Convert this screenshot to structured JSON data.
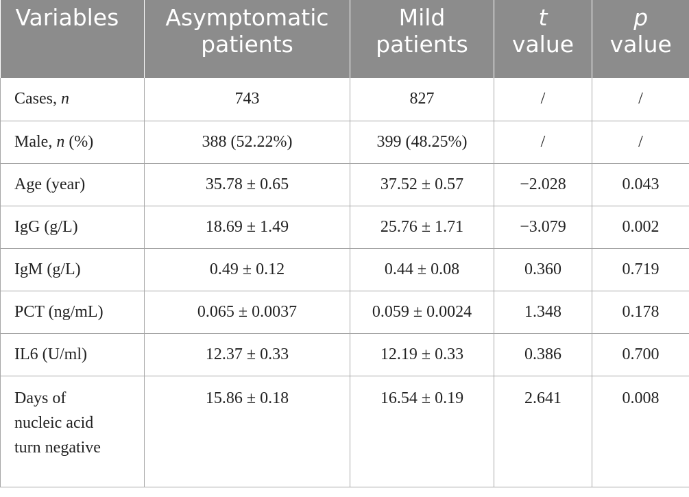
{
  "header": {
    "variables": "Variables",
    "asymptomatic_line1": "Asymptomatic",
    "asymptomatic_line2": "patients",
    "mild_line1": "Mild",
    "mild_line2": "patients",
    "t_symbol": "t",
    "t_word": "value",
    "p_symbol": "p",
    "p_word": "value"
  },
  "rows": [
    {
      "label_pre": "Cases, ",
      "label_italic": "n",
      "label_post": "",
      "asymptomatic": "743",
      "mild": "827",
      "t": "/",
      "p": "/"
    },
    {
      "label_pre": "Male, ",
      "label_italic": "n",
      "label_post": " (%)",
      "asymptomatic": "388 (52.22%)",
      "mild": "399 (48.25%)",
      "t": "/",
      "p": "/"
    },
    {
      "label_pre": "Age (year)",
      "label_italic": "",
      "label_post": "",
      "asymptomatic": "35.78 ± 0.65",
      "mild": "37.52 ± 0.57",
      "t": "−2.028",
      "p": "0.043"
    },
    {
      "label_pre": "IgG (g/L)",
      "label_italic": "",
      "label_post": "",
      "asymptomatic": "18.69 ± 1.49",
      "mild": "25.76 ± 1.71",
      "t": "−3.079",
      "p": "0.002"
    },
    {
      "label_pre": "IgM (g/L)",
      "label_italic": "",
      "label_post": "",
      "asymptomatic": "0.49 ± 0.12",
      "mild": "0.44 ± 0.08",
      "t": "0.360",
      "p": "0.719"
    },
    {
      "label_pre": "PCT (ng/mL)",
      "label_italic": "",
      "label_post": "",
      "asymptomatic": "0.065 ± 0.0037",
      "mild": "0.059 ± 0.0024",
      "t": "1.348",
      "p": "0.178"
    },
    {
      "label_pre": "IL6 (U/ml)",
      "label_italic": "",
      "label_post": "",
      "asymptomatic": "12.37 ± 0.33",
      "mild": "12.19 ± 0.33",
      "t": "0.386",
      "p": "0.700"
    }
  ],
  "last_row": {
    "label_line1": "Days of",
    "label_line2": "nucleic acid",
    "label_line3": "turn negative",
    "asymptomatic": "15.86 ± 0.18",
    "mild": "16.54 ± 0.19",
    "t": "2.641",
    "p": "0.008"
  }
}
